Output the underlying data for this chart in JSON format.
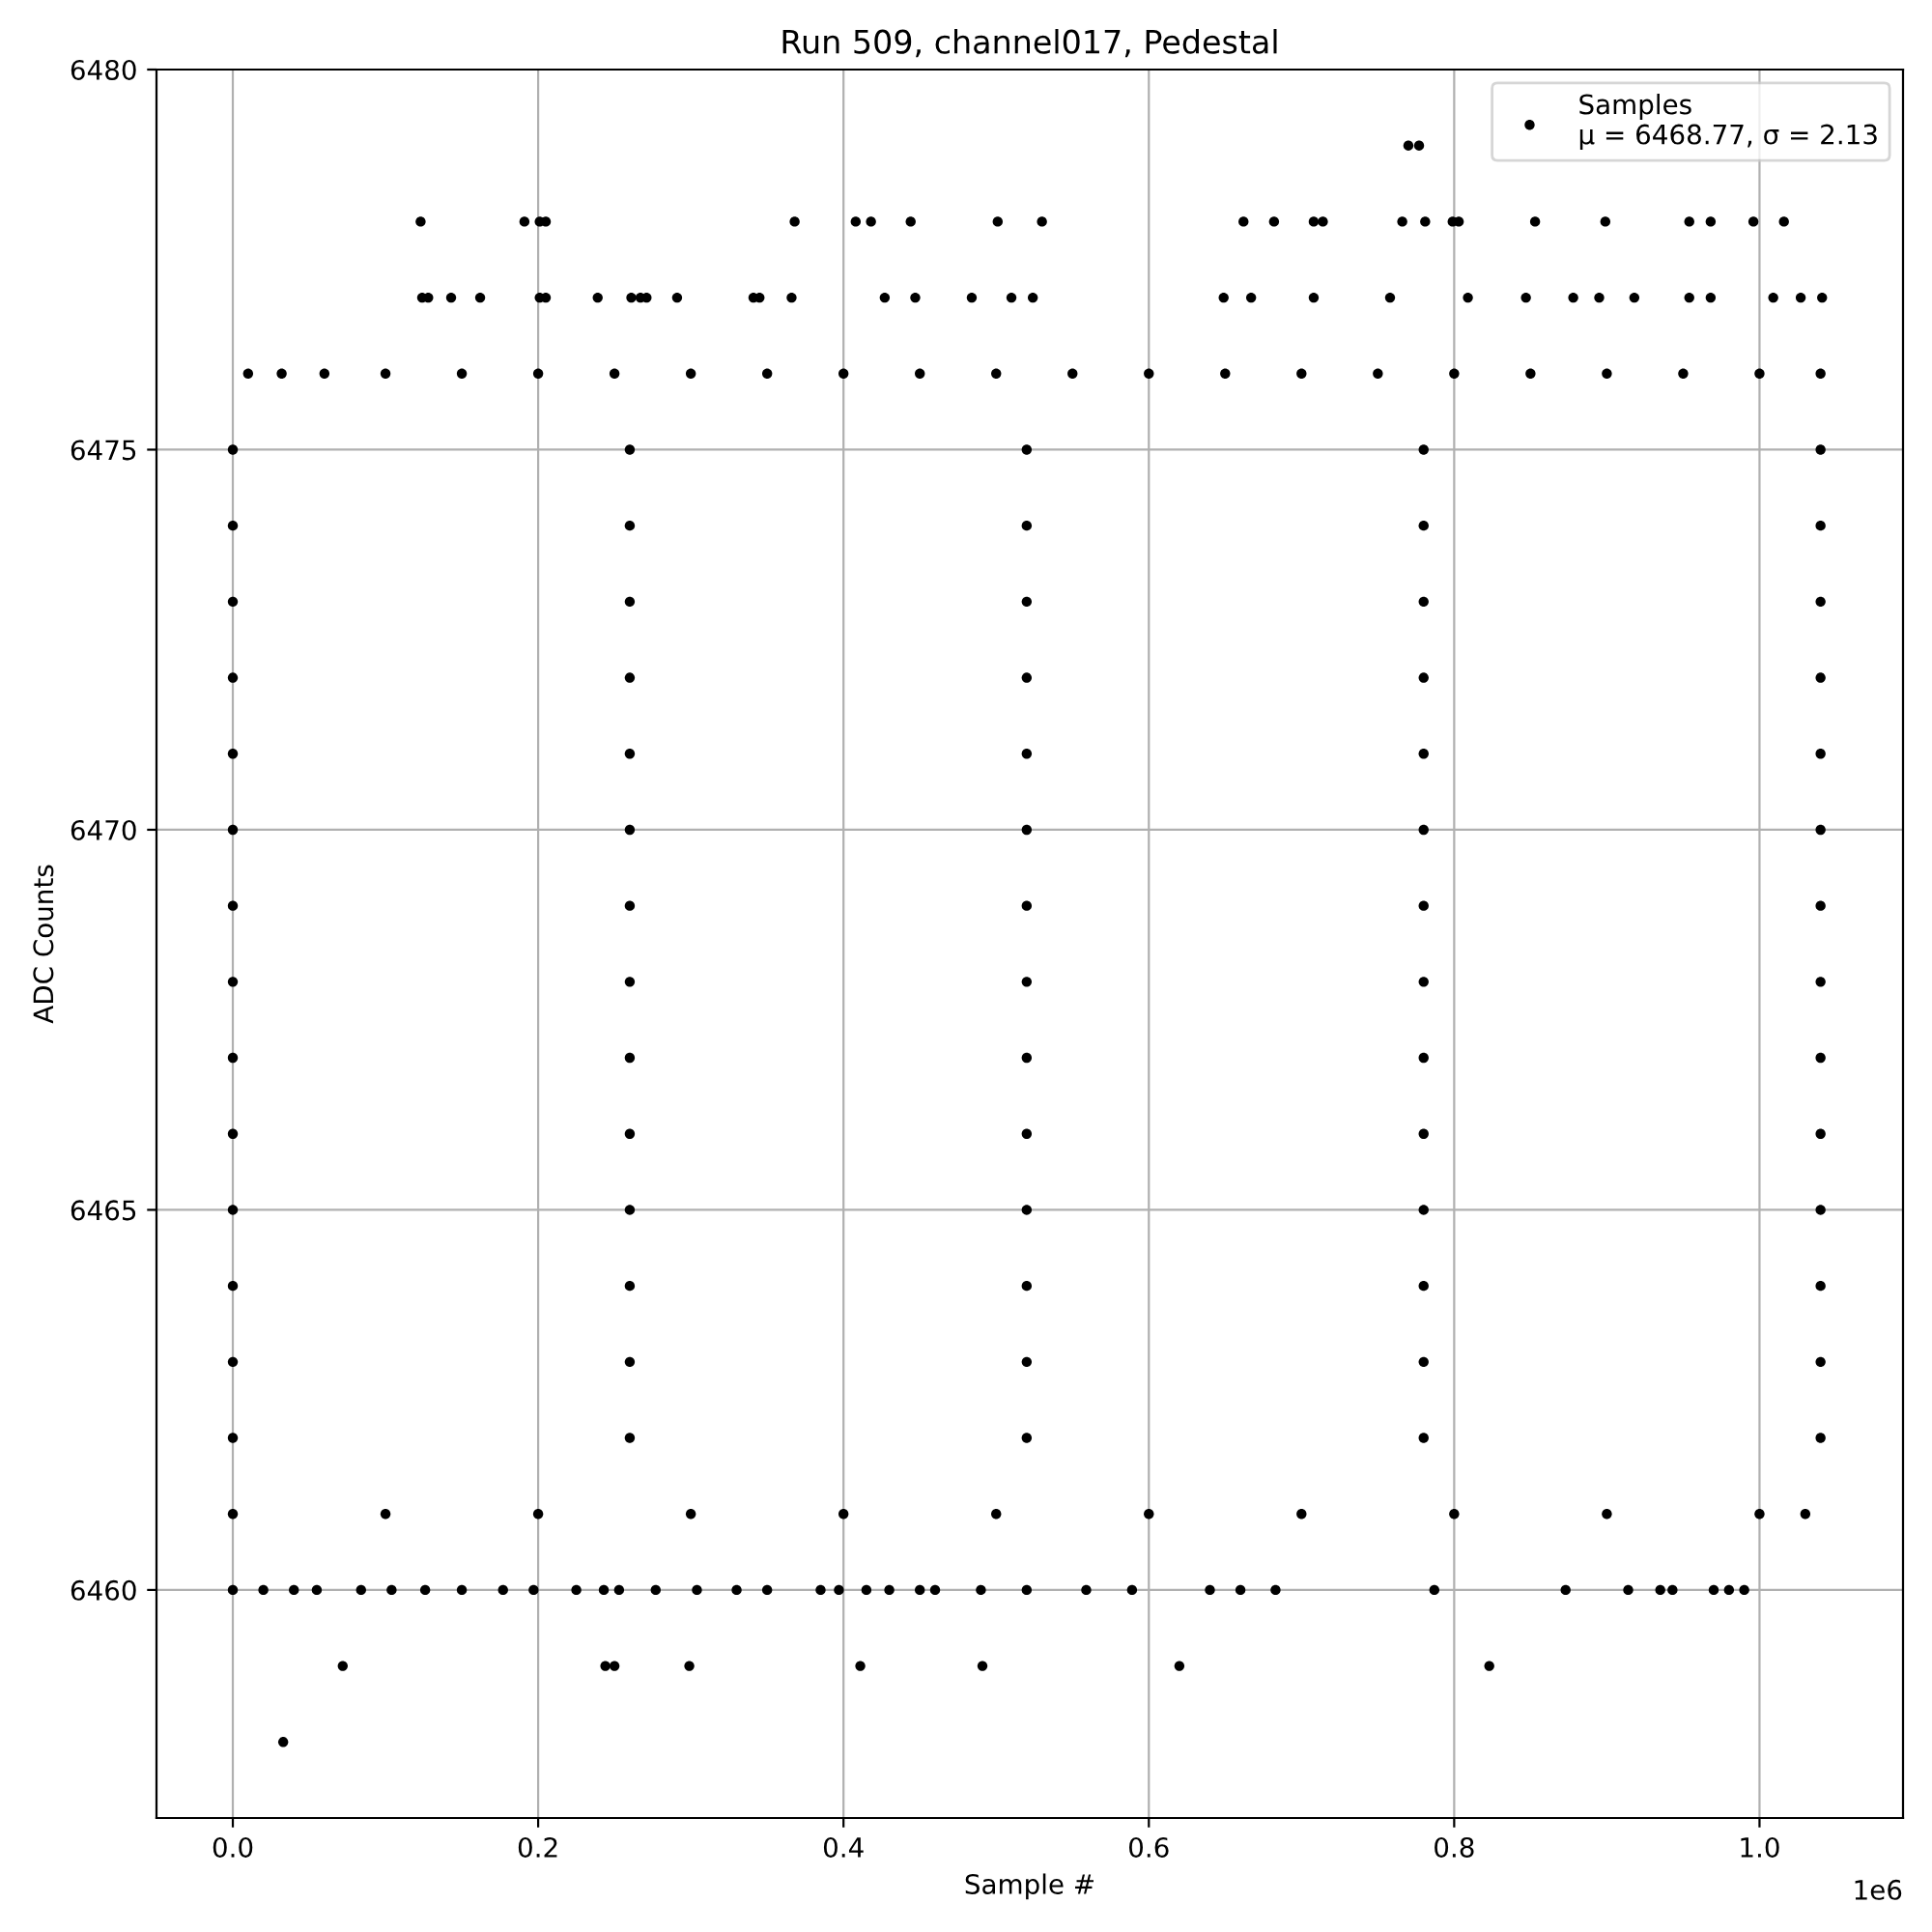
{
  "chart_data": {
    "type": "scatter",
    "title": "Run 509, channel017, Pedestal",
    "xlabel": "Sample #",
    "ylabel": "ADC Counts",
    "xlim": [
      -0.05,
      1.094
    ],
    "ylim": [
      6457,
      6480
    ],
    "xticks": [
      {
        "value": 0,
        "label": "0.0"
      },
      0.2,
      0.4,
      0.6,
      0.8,
      {
        "value": 1,
        "label": "1.0"
      }
    ],
    "yticks": [
      6460,
      6465,
      6470,
      6475,
      6480
    ],
    "annotations": [
      "1e6"
    ],
    "grid": true,
    "legend": "top right",
    "marker": "circle",
    "series": [
      {
        "name": "Samples\nμ = 6468.77, σ = 2.13",
        "color": "#000000",
        "x": [
          0.77,
          0.777,
          0.123,
          0.191,
          0.201,
          0.205,
          0.368,
          0.408,
          0.418,
          0.444,
          0.501,
          0.53,
          0.662,
          0.682,
          0.708,
          0.714,
          0.766,
          0.781,
          0.799,
          0.803,
          0.853,
          0.899,
          0.954,
          0.968,
          0.996,
          1.016,
          0.124,
          0.128,
          0.143,
          0.162,
          0.201,
          0.205,
          0.239,
          0.261,
          0.267,
          0.271,
          0.291,
          0.341,
          0.345,
          0.366,
          0.427,
          0.447,
          0.484,
          0.51,
          0.524,
          0.649,
          0.667,
          0.708,
          0.758,
          0.809,
          0.847,
          0.878,
          0.895,
          0.918,
          0.954,
          0.968,
          1.009,
          1.027,
          1.041,
          0.01,
          0.032,
          0.06,
          0.1,
          0.15,
          0.2,
          0.25,
          0.3,
          0.35,
          0.4,
          0.45,
          0.5,
          0.55,
          0.6,
          0.65,
          0.7,
          0.75,
          0.8,
          0.85,
          0.9,
          0.95,
          1.0,
          1.04,
          0,
          0.26,
          0.52,
          0.78,
          1.04,
          0,
          0.26,
          0.52,
          0.78,
          1.04,
          0,
          0.26,
          0.52,
          0.78,
          1.04,
          0,
          0.26,
          0.52,
          0.78,
          1.04,
          0,
          0.26,
          0.52,
          0.78,
          1.04,
          0,
          0.26,
          0.52,
          0.78,
          1.04,
          0,
          0.26,
          0.52,
          0.78,
          1.04,
          0,
          0.26,
          0.52,
          0.78,
          1.04,
          0,
          0.26,
          0.52,
          0.78,
          1.04,
          0,
          0.26,
          0.52,
          0.78,
          1.04,
          0,
          0.26,
          0.52,
          0.78,
          1.04,
          0,
          0.26,
          0.52,
          0.78,
          1.04,
          0,
          0.26,
          0.52,
          0.78,
          1.04,
          0,
          0.26,
          0.52,
          0.78,
          1.04,
          0,
          0.1,
          0.2,
          0.3,
          0.4,
          0.5,
          0.6,
          0.7,
          0.8,
          0.9,
          1.0,
          1.03,
          0,
          0.02,
          0.04,
          0.055,
          0.084,
          0.104,
          0.126,
          0.15,
          0.177,
          0.197,
          0.225,
          0.243,
          0.253,
          0.277,
          0.304,
          0.33,
          0.35,
          0.385,
          0.397,
          0.415,
          0.43,
          0.45,
          0.46,
          0.49,
          0.52,
          0.559,
          0.589,
          0.64,
          0.66,
          0.683,
          0.787,
          0.873,
          0.914,
          0.935,
          0.943,
          0.97,
          0.98,
          0.99,
          0.072,
          0.244,
          0.25,
          0.299,
          0.411,
          0.491,
          0.62,
          0.823,
          0.033
        ],
        "values": [
          6479,
          6479,
          6478,
          6478,
          6478,
          6478,
          6478,
          6478,
          6478,
          6478,
          6478,
          6478,
          6478,
          6478,
          6478,
          6478,
          6478,
          6478,
          6478,
          6478,
          6478,
          6478,
          6478,
          6478,
          6478,
          6478,
          6477,
          6477,
          6477,
          6477,
          6477,
          6477,
          6477,
          6477,
          6477,
          6477,
          6477,
          6477,
          6477,
          6477,
          6477,
          6477,
          6477,
          6477,
          6477,
          6477,
          6477,
          6477,
          6477,
          6477,
          6477,
          6477,
          6477,
          6477,
          6477,
          6477,
          6477,
          6477,
          6477,
          6476,
          6476,
          6476,
          6476,
          6476,
          6476,
          6476,
          6476,
          6476,
          6476,
          6476,
          6476,
          6476,
          6476,
          6476,
          6476,
          6476,
          6476,
          6476,
          6476,
          6476,
          6476,
          6476,
          6475,
          6475,
          6475,
          6475,
          6475,
          6474,
          6474,
          6474,
          6474,
          6474,
          6473,
          6473,
          6473,
          6473,
          6473,
          6472,
          6472,
          6472,
          6472,
          6472,
          6471,
          6471,
          6471,
          6471,
          6471,
          6470,
          6470,
          6470,
          6470,
          6470,
          6469,
          6469,
          6469,
          6469,
          6469,
          6468,
          6468,
          6468,
          6468,
          6468,
          6467,
          6467,
          6467,
          6467,
          6467,
          6466,
          6466,
          6466,
          6466,
          6466,
          6465,
          6465,
          6465,
          6465,
          6465,
          6464,
          6464,
          6464,
          6464,
          6464,
          6463,
          6463,
          6463,
          6463,
          6463,
          6462,
          6462,
          6462,
          6462,
          6462,
          6461,
          6461,
          6461,
          6461,
          6461,
          6461,
          6461,
          6461,
          6461,
          6461,
          6461,
          6461,
          6460,
          6460,
          6460,
          6460,
          6460,
          6460,
          6460,
          6460,
          6460,
          6460,
          6460,
          6460,
          6460,
          6460,
          6460,
          6460,
          6460,
          6460,
          6460,
          6460,
          6460,
          6460,
          6460,
          6460,
          6460,
          6460,
          6460,
          6460,
          6460,
          6460,
          6460,
          6460,
          6460,
          6460,
          6460,
          6460,
          6460,
          6460,
          6459,
          6459,
          6459,
          6459,
          6459,
          6459,
          6459,
          6459,
          6458
        ]
      }
    ]
  }
}
